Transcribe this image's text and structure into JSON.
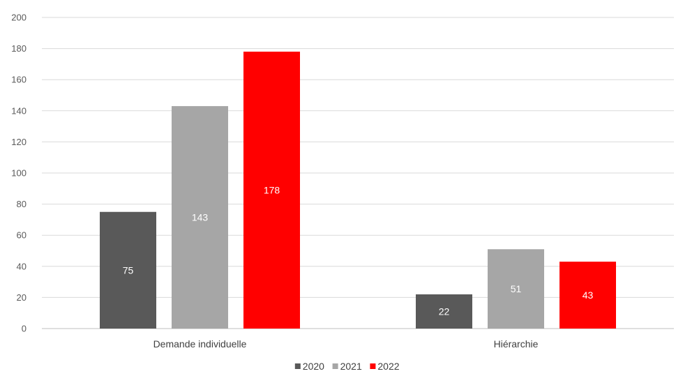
{
  "chart_data": {
    "type": "bar",
    "title": "",
    "xlabel": "",
    "ylabel": "",
    "categories": [
      "Demande individuelle",
      "Hiérarchie"
    ],
    "series": [
      {
        "name": "2020",
        "values": [
          75,
          22
        ],
        "color": "#595959"
      },
      {
        "name": "2021",
        "values": [
          143,
          51
        ],
        "color": "#a6a6a6"
      },
      {
        "name": "2022",
        "values": [
          178,
          43
        ],
        "color": "#ff0000"
      }
    ],
    "yticks": [
      0,
      20,
      40,
      60,
      80,
      100,
      120,
      140,
      160,
      180,
      200
    ],
    "ylim": [
      0,
      200
    ],
    "grid": true,
    "legend_position": "bottom",
    "data_labels_shown": true
  }
}
